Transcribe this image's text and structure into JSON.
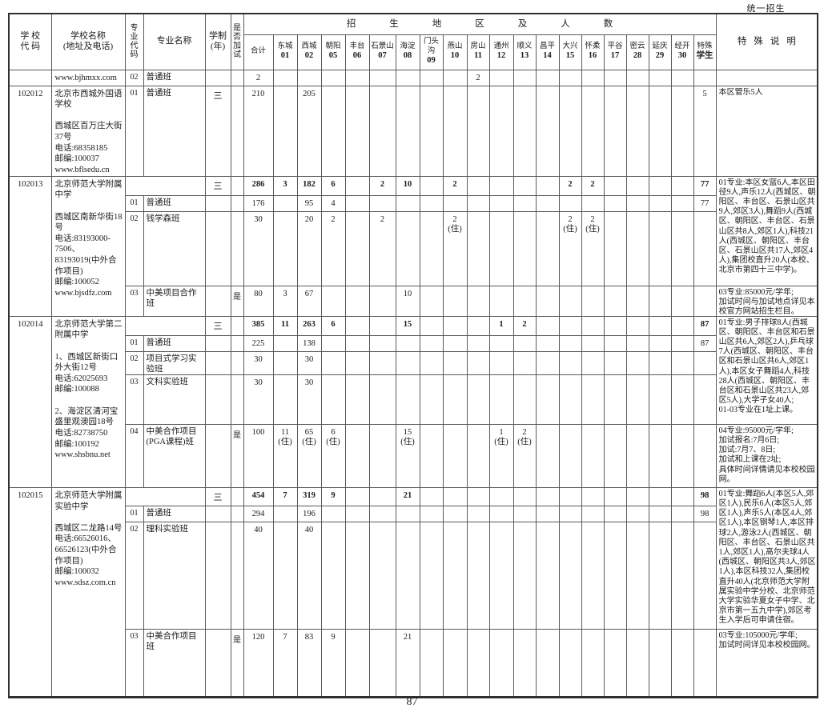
{
  "page": {
    "top_right_label": "统一招生",
    "page_number": "87"
  },
  "table": {
    "header": {
      "school_code": "学 校\n代 码",
      "school_name": "学校名称\n(地址及电话)",
      "major_code": "专\n业\n代\n码",
      "major_name": "专业名称",
      "duration": "学制\n(年)",
      "exam": "是\n否\n加\n试",
      "region_banner": "招生地区及人数",
      "special_note": "特殊说明",
      "columns": [
        {
          "name": "合计",
          "code": ""
        },
        {
          "name": "东城",
          "code": "01"
        },
        {
          "name": "西城",
          "code": "02"
        },
        {
          "name": "朝阳",
          "code": "05"
        },
        {
          "name": "丰台",
          "code": "06"
        },
        {
          "name": "石景山",
          "code": "07"
        },
        {
          "name": "海淀",
          "code": "08"
        },
        {
          "name": "门头沟",
          "code": "09"
        },
        {
          "name": "燕山",
          "code": "10"
        },
        {
          "name": "房山",
          "code": "11"
        },
        {
          "name": "通州",
          "code": "12"
        },
        {
          "name": "顺义",
          "code": "13"
        },
        {
          "name": "昌平",
          "code": "14"
        },
        {
          "name": "大兴",
          "code": "15"
        },
        {
          "name": "怀柔",
          "code": "16"
        },
        {
          "name": "平谷",
          "code": "17"
        },
        {
          "name": "密云",
          "code": "28"
        },
        {
          "name": "延庆",
          "code": "29"
        },
        {
          "name": "经开",
          "code": "30"
        },
        {
          "name": "特殊",
          "code": "学生"
        }
      ]
    },
    "groups": [
      {
        "school_code": "",
        "school_info": "www.bjhmxx.com",
        "rows": [
          {
            "major_code": "02",
            "major_name": "普通班",
            "duration": "",
            "exam": "",
            "bold": false,
            "merged": false,
            "values": [
              "2",
              "",
              "",
              "",
              "",
              "",
              "",
              "",
              "",
              "2",
              "",
              "",
              "",
              "",
              "",
              "",
              "",
              "",
              "",
              ""
            ]
          }
        ],
        "notes": [
          {
            "span": 1,
            "text": ""
          }
        ]
      },
      {
        "school_code": "102012",
        "school_info": "北京市西城外国语学校\n\n西城区百万庄大街37号\n电话:68358185\n邮编:100037\nwww.bflsedu.cn",
        "rows": [
          {
            "major_code": "01",
            "major_name": "普通班",
            "duration": "三",
            "exam": "",
            "bold": false,
            "merged": false,
            "values": [
              "210",
              "",
              "205",
              "",
              "",
              "",
              "",
              "",
              "",
              "",
              "",
              "",
              "",
              "",
              "",
              "",
              "",
              "",
              "",
              "5"
            ]
          }
        ],
        "notes": [
          {
            "span": 1,
            "text": "本区管乐5人"
          }
        ]
      },
      {
        "school_code": "102013",
        "school_info": "北京师范大学附属中学\n\n西城区南新华街18号\n电话:83193000-7506、83193019(中外合作项目)\n邮编:100052\nwww.bjsdfz.com",
        "rows": [
          {
            "major_code": "",
            "major_name": "",
            "duration": "三",
            "exam": "",
            "bold": true,
            "merged": true,
            "values": [
              "286",
              "3",
              "182",
              "6",
              "",
              "2",
              "10",
              "",
              "2",
              "",
              "",
              "",
              "",
              "2",
              "2",
              "",
              "",
              "",
              "",
              "77"
            ]
          },
          {
            "major_code": "01",
            "major_name": "普通班",
            "duration": "",
            "exam": "",
            "bold": false,
            "merged": false,
            "values": [
              "176",
              "",
              "95",
              "4",
              "",
              "",
              "",
              "",
              "",
              "",
              "",
              "",
              "",
              "",
              "",
              "",
              "",
              "",
              "",
              "77"
            ]
          },
          {
            "major_code": "02",
            "major_name": "钱学森班",
            "duration": "",
            "exam": "",
            "bold": false,
            "merged": false,
            "values": [
              "30",
              "",
              "20",
              "2",
              "",
              "2",
              "",
              "",
              "2\n(住)",
              "",
              "",
              "",
              "",
              "2\n(住)",
              "2\n(住)",
              "",
              "",
              "",
              "",
              ""
            ]
          },
          {
            "major_code": "03",
            "major_name": "中美项目合作班",
            "duration": "",
            "exam": "是",
            "bold": false,
            "merged": false,
            "values": [
              "80",
              "3",
              "67",
              "",
              "",
              "",
              "10",
              "",
              "",
              "",
              "",
              "",
              "",
              "",
              "",
              "",
              "",
              "",
              "",
              ""
            ]
          }
        ],
        "notes": [
          {
            "span": 3,
            "text": "01专业:本区女篮6人,本区田径9人,声乐12人(西城区、朝阳区、丰台区、石景山区共9人,郊区3人),舞蹈9人(西城区、朝阳区、丰台区、石景山区共8人,郊区1人),科技21人(西城区、朝阳区、丰台区、石景山区共17人,郊区4人),集团校直升20人(本校、北京市第四十三中学)。"
          },
          {
            "span": 1,
            "text": "03专业:85000元/学年;\n加试时间与加试地点详见本校官方网站招生栏目。"
          }
        ]
      },
      {
        "school_code": "102014",
        "school_info": "北京师范大学第二附属中学\n\n1、西城区新街口外大街12号\n电话:62025693\n邮编:100088\n\n2、海淀区清河宝盛里观澳园18号\n电话:82738750\n邮编:100192\nwww.shsbnu.net",
        "rows": [
          {
            "major_code": "",
            "major_name": "",
            "duration": "三",
            "exam": "",
            "bold": true,
            "merged": true,
            "values": [
              "385",
              "11",
              "263",
              "6",
              "",
              "",
              "15",
              "",
              "",
              "",
              "1",
              "2",
              "",
              "",
              "",
              "",
              "",
              "",
              "",
              "87"
            ]
          },
          {
            "major_code": "01",
            "major_name": "普通班",
            "duration": "",
            "exam": "",
            "bold": false,
            "merged": false,
            "values": [
              "225",
              "",
              "138",
              "",
              "",
              "",
              "",
              "",
              "",
              "",
              "",
              "",
              "",
              "",
              "",
              "",
              "",
              "",
              "",
              "87"
            ]
          },
          {
            "major_code": "02",
            "major_name": "项目式学习实验班",
            "duration": "",
            "exam": "",
            "bold": false,
            "merged": false,
            "values": [
              "30",
              "",
              "30",
              "",
              "",
              "",
              "",
              "",
              "",
              "",
              "",
              "",
              "",
              "",
              "",
              "",
              "",
              "",
              "",
              ""
            ]
          },
          {
            "major_code": "03",
            "major_name": "文科实验班",
            "duration": "",
            "exam": "",
            "bold": false,
            "merged": false,
            "values": [
              "30",
              "",
              "30",
              "",
              "",
              "",
              "",
              "",
              "",
              "",
              "",
              "",
              "",
              "",
              "",
              "",
              "",
              "",
              "",
              ""
            ]
          },
          {
            "major_code": "04",
            "major_name": "中美合作项目\n(PGA课程)班",
            "duration": "",
            "exam": "是",
            "bold": false,
            "merged": false,
            "values": [
              "100",
              "11\n(住)",
              "65\n(住)",
              "6\n(住)",
              "",
              "",
              "15\n(住)",
              "",
              "",
              "",
              "1\n(住)",
              "2\n(住)",
              "",
              "",
              "",
              "",
              "",
              "",
              "",
              ""
            ]
          }
        ],
        "notes": [
          {
            "span": 4,
            "text": "01专业:男子排球8人(西城区、朝阳区、丰台区和石景山区共6人,郊区2人),乒乓球7人(西城区、朝阳区、丰台区和石景山区共6人,郊区1人),本区女子舞蹈4人,科技28人(西城区、朝阳区、丰台区和石景山区共23人,郊区5人),大学子女40人;\n01-03专业在1址上课。"
          },
          {
            "span": 1,
            "text": "04专业:95000元/学年;\n加试报名:7月6日;\n加试:7月7、8日;\n加试和上课在2址;\n具体时间详情请见本校校园网。"
          }
        ]
      },
      {
        "school_code": "102015",
        "school_info": "北京师范大学附属实验中学\n\n西城区二龙路14号\n电话:66526016、66526123(中外合作项目)\n邮编:100032\nwww.sdsz.com.cn",
        "rows": [
          {
            "major_code": "",
            "major_name": "",
            "duration": "三",
            "exam": "",
            "bold": true,
            "merged": true,
            "values": [
              "454",
              "7",
              "319",
              "9",
              "",
              "",
              "21",
              "",
              "",
              "",
              "",
              "",
              "",
              "",
              "",
              "",
              "",
              "",
              "",
              "98"
            ]
          },
          {
            "major_code": "01",
            "major_name": "普通班",
            "duration": "",
            "exam": "",
            "bold": false,
            "merged": false,
            "values": [
              "294",
              "",
              "196",
              "",
              "",
              "",
              "",
              "",
              "",
              "",
              "",
              "",
              "",
              "",
              "",
              "",
              "",
              "",
              "",
              "98"
            ]
          },
          {
            "major_code": "02",
            "major_name": "理科实验班",
            "duration": "",
            "exam": "",
            "bold": false,
            "merged": false,
            "values": [
              "40",
              "",
              "40",
              "",
              "",
              "",
              "",
              "",
              "",
              "",
              "",
              "",
              "",
              "",
              "",
              "",
              "",
              "",
              "",
              ""
            ]
          },
          {
            "major_code": "03",
            "major_name": "中美合作项目班",
            "duration": "",
            "exam": "是",
            "bold": false,
            "merged": false,
            "values": [
              "120",
              "7",
              "83",
              "9",
              "",
              "",
              "21",
              "",
              "",
              "",
              "",
              "",
              "",
              "",
              "",
              "",
              "",
              "",
              "",
              ""
            ]
          }
        ],
        "notes": [
          {
            "span": 3,
            "text": "01专业:舞蹈6人(本区5人,郊区1人),民乐6人(本区5人,郊区1人),声乐5人(本区4人,郊区1人),本区钢琴1人,本区排球2人,游泳2人(西城区、朝阳区、丰台区、石景山区共1人,郊区1人),高尔夫球4人(西城区、朝阳区共3人,郊区1人),本区科技32人,集团校直升40人(北京师范大学附属实验中学分校、北京师范大学实验华夏女子中学、北京市第一五九中学),郊区考生入学后可申请住宿。"
          },
          {
            "span": 1,
            "text": "03专业:105000元/学年;\n加试时间详见本校校园网。"
          }
        ]
      }
    ]
  }
}
